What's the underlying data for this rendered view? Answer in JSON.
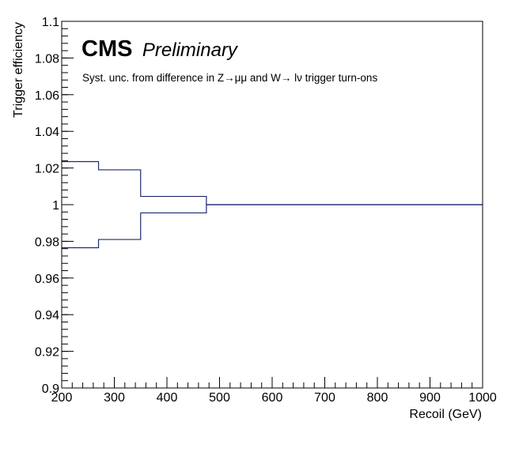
{
  "chart_data": {
    "type": "line",
    "subtype": "step-band",
    "xlabel": "Recoil (GeV)",
    "ylabel": "Trigger efficiency",
    "xlim": [
      200,
      1000
    ],
    "ylim": [
      0.9,
      1.1
    ],
    "x_ticks": [
      200,
      300,
      400,
      500,
      600,
      700,
      800,
      900,
      1000
    ],
    "x_tick_labels": [
      "200",
      "300",
      "400",
      "500",
      "600",
      "700",
      "800",
      "900",
      "1000"
    ],
    "y_ticks": [
      0.9,
      0.92,
      0.94,
      0.96,
      0.98,
      1,
      1.02,
      1.04,
      1.06,
      1.08,
      1.1
    ],
    "y_tick_labels": [
      "0.9",
      "0.92",
      "0.94",
      "0.96",
      "0.98",
      "1",
      "1.02",
      "1.04",
      "1.06",
      "1.08",
      "1.1"
    ],
    "grid": false,
    "line_color": "#1f2a6e",
    "bin_edges": [
      200,
      270,
      350,
      475,
      1000
    ],
    "series": [
      {
        "values": [
          1.0235,
          1.019,
          1.0045,
          1.0
        ]
      },
      {
        "values": [
          0.9765,
          0.981,
          0.9955,
          1.0
        ]
      }
    ],
    "annotations": {
      "experiment": "CMS",
      "status": "Preliminary",
      "note": "Syst. unc. from difference in Z→μμ and W→ lν trigger turn-ons"
    }
  }
}
